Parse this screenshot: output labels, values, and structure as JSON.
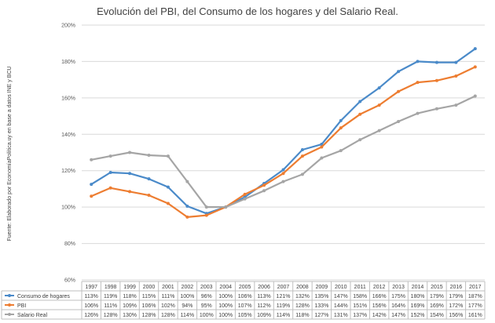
{
  "chart_data": {
    "type": "line",
    "title": "Evolución del PBI, del Consumo de los hogares y del Salario Real.",
    "source_note": "Fuente: Elaborado por EconomíaPolítica.uy en base a datos INE y BCU",
    "y_ticks": [
      "60%",
      "80%",
      "100%",
      "120%",
      "140%",
      "160%",
      "180%",
      "200%"
    ],
    "ylim": [
      60,
      200
    ],
    "grid": true,
    "legend": "data-table",
    "categories": [
      "1997",
      "1998",
      "1999",
      "2000",
      "2001",
      "2002",
      "2003",
      "2004",
      "2005",
      "2006",
      "2007",
      "2008",
      "2009",
      "2010",
      "2011",
      "2012",
      "2013",
      "2014",
      "2015",
      "2016",
      "2017"
    ],
    "series": [
      {
        "name": "Consumo de hogares",
        "color": "#4a8ac9",
        "values": [
          112.5,
          119,
          118.5,
          115.5,
          111,
          100.5,
          96.5,
          100,
          105.5,
          113,
          120.5,
          131.5,
          134.5,
          147.5,
          158,
          165.5,
          174.5,
          180,
          179.5,
          179.5,
          187
        ],
        "labels": [
          "113%",
          "119%",
          "118%",
          "115%",
          "111%",
          "100%",
          "96%",
          "100%",
          "106%",
          "113%",
          "121%",
          "132%",
          "135%",
          "147%",
          "158%",
          "166%",
          "175%",
          "180%",
          "179%",
          "179%",
          "187%"
        ]
      },
      {
        "name": "PBI",
        "color": "#ed7d31",
        "values": [
          106,
          110.5,
          108.5,
          106.5,
          102,
          94.5,
          95.5,
          100,
          107,
          112,
          118.5,
          128,
          133,
          143.5,
          151,
          156,
          163.5,
          168.5,
          169.5,
          172,
          177
        ],
        "labels": [
          "106%",
          "111%",
          "109%",
          "106%",
          "102%",
          "94%",
          "95%",
          "100%",
          "107%",
          "112%",
          "119%",
          "128%",
          "133%",
          "144%",
          "151%",
          "156%",
          "164%",
          "169%",
          "169%",
          "172%",
          "177%"
        ]
      },
      {
        "name": "Salario Real",
        "color": "#a5a5a5",
        "values": [
          126,
          128,
          130,
          128.5,
          128,
          114,
          100,
          100,
          104.5,
          109,
          114,
          118,
          127,
          131,
          137,
          142,
          147,
          151.5,
          154,
          156,
          161
        ],
        "labels": [
          "126%",
          "128%",
          "130%",
          "128%",
          "128%",
          "114%",
          "100%",
          "100%",
          "105%",
          "109%",
          "114%",
          "118%",
          "127%",
          "131%",
          "137%",
          "142%",
          "147%",
          "152%",
          "154%",
          "156%",
          "161%"
        ]
      }
    ]
  }
}
